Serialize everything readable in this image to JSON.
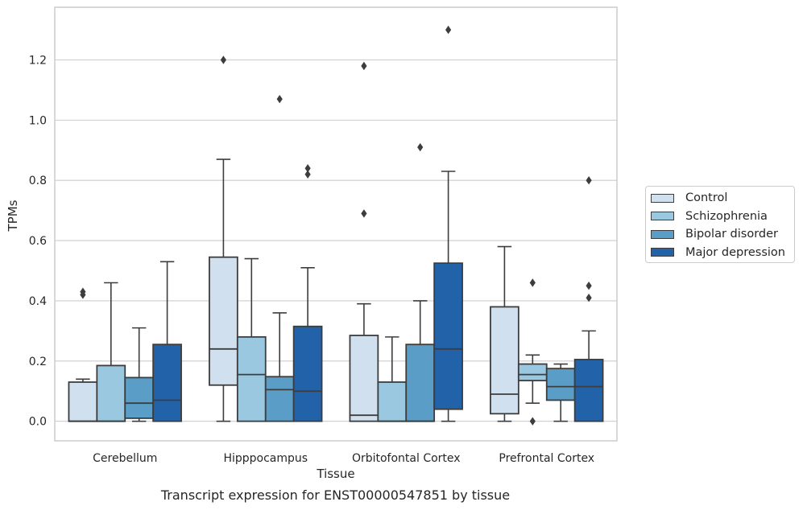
{
  "chart_data": {
    "type": "box",
    "title": "",
    "xlabel": "Tissue",
    "ylabel": "TPMs",
    "caption": "Transcript expression for ENST00000547851 by tissue",
    "ylim": [
      -0.065,
      1.375
    ],
    "yticks": [
      0.0,
      0.2,
      0.4,
      0.6,
      0.8,
      1.0,
      1.2
    ],
    "ytick_labels": [
      "0.0",
      "0.2",
      "0.4",
      "0.6",
      "0.8",
      "1.0",
      "1.2"
    ],
    "grid": "horizontal",
    "legend_position": "right",
    "categories": [
      "Cerebellum",
      "Hipppocampus",
      "Orbitofontal Cortex",
      "Prefrontal Cortex"
    ],
    "series": [
      {
        "name": "Control",
        "color": "#d1e0ef",
        "boxes": [
          {
            "whislo": 0.0,
            "q1": 0.0,
            "med": 0.0,
            "q3": 0.13,
            "whishi": 0.14,
            "fliers": [
              0.42,
              0.43
            ]
          },
          {
            "whislo": 0.0,
            "q1": 0.12,
            "med": 0.24,
            "q3": 0.545,
            "whishi": 0.87,
            "fliers": [
              1.2
            ]
          },
          {
            "whislo": 0.0,
            "q1": 0.0,
            "med": 0.02,
            "q3": 0.285,
            "whishi": 0.39,
            "fliers": [
              0.69,
              1.18
            ]
          },
          {
            "whislo": 0.0,
            "q1": 0.025,
            "med": 0.09,
            "q3": 0.38,
            "whishi": 0.58,
            "fliers": []
          }
        ]
      },
      {
        "name": "Schizophrenia",
        "color": "#9ac8e0",
        "boxes": [
          {
            "whislo": 0.0,
            "q1": 0.0,
            "med": 0.0,
            "q3": 0.185,
            "whishi": 0.46,
            "fliers": []
          },
          {
            "whislo": 0.0,
            "q1": 0.0,
            "med": 0.155,
            "q3": 0.28,
            "whishi": 0.54,
            "fliers": []
          },
          {
            "whislo": 0.0,
            "q1": 0.0,
            "med": 0.0,
            "q3": 0.13,
            "whishi": 0.28,
            "fliers": []
          },
          {
            "whislo": 0.06,
            "q1": 0.135,
            "med": 0.155,
            "q3": 0.19,
            "whishi": 0.22,
            "fliers": [
              0.0,
              0.46
            ]
          }
        ]
      },
      {
        "name": "Bipolar disorder",
        "color": "#5a9ec8",
        "boxes": [
          {
            "whislo": 0.0,
            "q1": 0.01,
            "med": 0.06,
            "q3": 0.145,
            "whishi": 0.31,
            "fliers": []
          },
          {
            "whislo": 0.0,
            "q1": 0.0,
            "med": 0.105,
            "q3": 0.148,
            "whishi": 0.36,
            "fliers": [
              1.07
            ]
          },
          {
            "whislo": 0.0,
            "q1": 0.0,
            "med": 0.0,
            "q3": 0.255,
            "whishi": 0.4,
            "fliers": [
              0.91
            ]
          },
          {
            "whislo": 0.0,
            "q1": 0.07,
            "med": 0.115,
            "q3": 0.175,
            "whishi": 0.19,
            "fliers": []
          }
        ]
      },
      {
        "name": "Major depression",
        "color": "#2262a8",
        "boxes": [
          {
            "whislo": 0.0,
            "q1": 0.0,
            "med": 0.07,
            "q3": 0.255,
            "whishi": 0.53,
            "fliers": []
          },
          {
            "whislo": 0.0,
            "q1": 0.0,
            "med": 0.1,
            "q3": 0.315,
            "whishi": 0.51,
            "fliers": [
              0.82,
              0.84
            ]
          },
          {
            "whislo": 0.0,
            "q1": 0.04,
            "med": 0.24,
            "q3": 0.525,
            "whishi": 0.83,
            "fliers": [
              1.3
            ]
          },
          {
            "whislo": 0.0,
            "q1": 0.0,
            "med": 0.115,
            "q3": 0.205,
            "whishi": 0.3,
            "fliers": [
              0.41,
              0.45,
              0.8
            ]
          }
        ]
      }
    ]
  }
}
